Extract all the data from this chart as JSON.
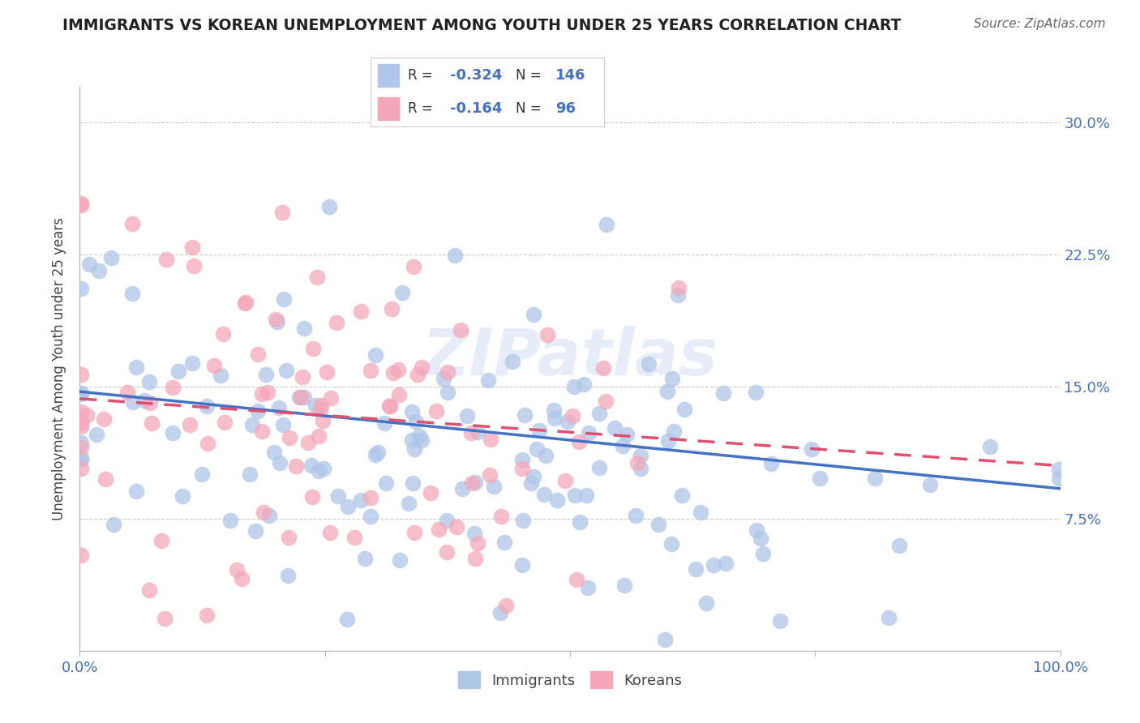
{
  "title": "IMMIGRANTS VS KOREAN UNEMPLOYMENT AMONG YOUTH UNDER 25 YEARS CORRELATION CHART",
  "source": "Source: ZipAtlas.com",
  "ylabel": "Unemployment Among Youth under 25 years",
  "xlim": [
    0.0,
    1.0
  ],
  "ylim": [
    0.0,
    0.32
  ],
  "yticks": [
    0.0,
    0.075,
    0.15,
    0.225,
    0.3
  ],
  "ytick_labels": [
    "",
    "7.5%",
    "15.0%",
    "22.5%",
    "30.0%"
  ],
  "xticks": [
    0.0,
    0.25,
    0.5,
    0.75,
    1.0
  ],
  "xtick_labels": [
    "0.0%",
    "",
    "",
    "",
    "100.0%"
  ],
  "legend_labels": [
    "Immigrants",
    "Koreans"
  ],
  "immigrants_color": "#aec6e8",
  "koreans_color": "#f4a7b9",
  "immigrants_line_color": "#4472c4",
  "koreans_line_color": "#e05070",
  "r_immigrants": -0.324,
  "n_immigrants": 146,
  "r_koreans": -0.164,
  "n_koreans": 96,
  "watermark": "ZIPatlas",
  "background_color": "#ffffff",
  "grid_color": "#cccccc",
  "title_color": "#222222",
  "tick_color": "#4472c4",
  "legend_r_color": "#4472c4",
  "line_intercept_imm": 0.147,
  "line_slope_imm": -0.055,
  "line_intercept_kor": 0.143,
  "line_slope_kor": -0.038
}
